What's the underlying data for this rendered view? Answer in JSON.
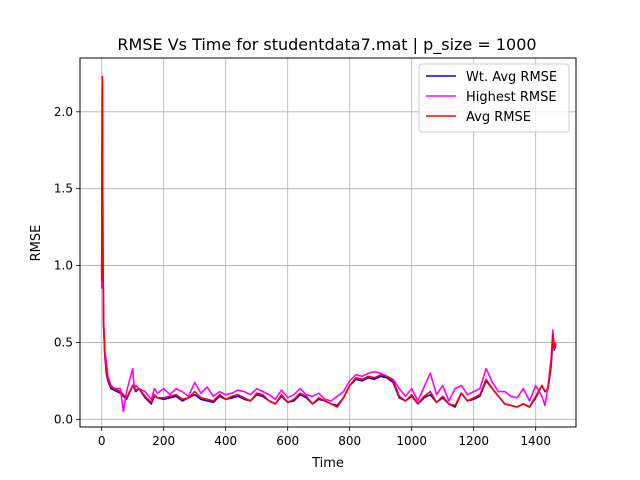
{
  "chart_data": {
    "type": "line",
    "title": "RMSE Vs Time for studentdata7.mat | p_size = 1000",
    "xlabel": "Time",
    "ylabel": "RMSE",
    "xlim": [
      -70,
      1530
    ],
    "ylim": [
      -0.05,
      2.35
    ],
    "xticks": [
      0,
      200,
      400,
      600,
      800,
      1000,
      1200,
      1400
    ],
    "yticks": [
      0.0,
      0.5,
      1.0,
      1.5,
      2.0
    ],
    "grid": true,
    "legend_position": "top-right",
    "series": [
      {
        "name": "Wt. Avg RMSE",
        "color": "#0000ff",
        "x": [
          0,
          2,
          4,
          6,
          10,
          15,
          20,
          30,
          40,
          60,
          80,
          100,
          110,
          120,
          140,
          160,
          170,
          180,
          200,
          220,
          240,
          260,
          280,
          300,
          320,
          340,
          360,
          380,
          400,
          420,
          440,
          460,
          480,
          500,
          520,
          540,
          560,
          580,
          600,
          620,
          640,
          660,
          680,
          700,
          720,
          740,
          760,
          780,
          800,
          820,
          840,
          860,
          880,
          900,
          920,
          940,
          960,
          980,
          1000,
          1020,
          1040,
          1060,
          1080,
          1100,
          1120,
          1140,
          1160,
          1180,
          1200,
          1220,
          1240,
          1260,
          1280,
          1300,
          1320,
          1340,
          1360,
          1380,
          1400,
          1420,
          1430,
          1440,
          1450,
          1455,
          1460,
          1465
        ],
        "y": [
          0.95,
          2.22,
          1.1,
          0.6,
          0.42,
          0.3,
          0.25,
          0.2,
          0.19,
          0.17,
          0.13,
          0.22,
          0.18,
          0.2,
          0.14,
          0.1,
          0.15,
          0.14,
          0.13,
          0.14,
          0.15,
          0.12,
          0.14,
          0.16,
          0.13,
          0.12,
          0.11,
          0.15,
          0.13,
          0.14,
          0.15,
          0.13,
          0.12,
          0.16,
          0.15,
          0.12,
          0.1,
          0.15,
          0.11,
          0.12,
          0.16,
          0.14,
          0.1,
          0.13,
          0.12,
          0.1,
          0.09,
          0.14,
          0.22,
          0.26,
          0.25,
          0.27,
          0.26,
          0.28,
          0.27,
          0.24,
          0.14,
          0.12,
          0.15,
          0.1,
          0.14,
          0.16,
          0.11,
          0.14,
          0.1,
          0.08,
          0.17,
          0.12,
          0.13,
          0.15,
          0.25,
          0.2,
          0.15,
          0.1,
          0.09,
          0.08,
          0.1,
          0.08,
          0.14,
          0.22,
          0.18,
          0.2,
          0.35,
          0.52,
          0.45,
          0.48
        ]
      },
      {
        "name": "Highest RMSE",
        "color": "#ff00ff",
        "x": [
          0,
          2,
          4,
          6,
          10,
          15,
          20,
          30,
          40,
          60,
          70,
          80,
          100,
          105,
          110,
          120,
          140,
          160,
          170,
          180,
          200,
          220,
          240,
          260,
          280,
          300,
          320,
          340,
          360,
          380,
          400,
          420,
          440,
          460,
          480,
          500,
          520,
          540,
          560,
          580,
          600,
          620,
          640,
          660,
          680,
          700,
          720,
          740,
          760,
          780,
          800,
          820,
          840,
          860,
          880,
          900,
          920,
          940,
          960,
          980,
          1000,
          1020,
          1040,
          1060,
          1080,
          1100,
          1120,
          1140,
          1160,
          1180,
          1200,
          1220,
          1240,
          1260,
          1280,
          1300,
          1320,
          1340,
          1360,
          1380,
          1400,
          1420,
          1430,
          1440,
          1450,
          1455,
          1460,
          1465
        ],
        "y": [
          0.85,
          2.2,
          1.15,
          0.65,
          0.44,
          0.38,
          0.28,
          0.22,
          0.2,
          0.2,
          0.05,
          0.18,
          0.33,
          0.2,
          0.22,
          0.2,
          0.18,
          0.13,
          0.2,
          0.17,
          0.2,
          0.16,
          0.2,
          0.18,
          0.15,
          0.24,
          0.17,
          0.21,
          0.15,
          0.18,
          0.16,
          0.17,
          0.19,
          0.18,
          0.16,
          0.2,
          0.18,
          0.16,
          0.13,
          0.19,
          0.14,
          0.16,
          0.2,
          0.16,
          0.15,
          0.17,
          0.13,
          0.12,
          0.15,
          0.18,
          0.25,
          0.29,
          0.28,
          0.3,
          0.31,
          0.3,
          0.28,
          0.26,
          0.2,
          0.15,
          0.2,
          0.12,
          0.21,
          0.3,
          0.16,
          0.22,
          0.12,
          0.2,
          0.22,
          0.16,
          0.18,
          0.2,
          0.33,
          0.24,
          0.18,
          0.18,
          0.15,
          0.14,
          0.2,
          0.12,
          0.22,
          0.15,
          0.09,
          0.22,
          0.4,
          0.58,
          0.47,
          0.5
        ]
      },
      {
        "name": "Avg RMSE",
        "color": "#ff0000",
        "x": [
          0,
          2,
          4,
          6,
          10,
          15,
          20,
          30,
          40,
          60,
          80,
          100,
          110,
          120,
          140,
          160,
          170,
          180,
          200,
          220,
          240,
          260,
          280,
          300,
          320,
          340,
          360,
          380,
          400,
          420,
          440,
          460,
          480,
          500,
          520,
          540,
          560,
          580,
          600,
          620,
          640,
          660,
          680,
          700,
          720,
          740,
          760,
          780,
          800,
          820,
          840,
          860,
          880,
          900,
          920,
          940,
          960,
          980,
          1000,
          1020,
          1040,
          1060,
          1080,
          1100,
          1120,
          1140,
          1160,
          1180,
          1200,
          1220,
          1240,
          1260,
          1280,
          1300,
          1320,
          1340,
          1360,
          1380,
          1400,
          1420,
          1430,
          1440,
          1450,
          1455,
          1460,
          1465
        ],
        "y": [
          0.9,
          2.23,
          1.12,
          0.62,
          0.42,
          0.32,
          0.26,
          0.21,
          0.2,
          0.18,
          0.14,
          0.22,
          0.19,
          0.2,
          0.15,
          0.11,
          0.16,
          0.14,
          0.14,
          0.15,
          0.16,
          0.13,
          0.14,
          0.18,
          0.14,
          0.13,
          0.12,
          0.16,
          0.13,
          0.15,
          0.16,
          0.14,
          0.12,
          0.17,
          0.16,
          0.12,
          0.1,
          0.16,
          0.11,
          0.13,
          0.17,
          0.15,
          0.1,
          0.14,
          0.12,
          0.1,
          0.08,
          0.14,
          0.22,
          0.27,
          0.26,
          0.28,
          0.27,
          0.29,
          0.28,
          0.25,
          0.15,
          0.12,
          0.16,
          0.1,
          0.15,
          0.18,
          0.11,
          0.15,
          0.1,
          0.09,
          0.17,
          0.12,
          0.14,
          0.16,
          0.26,
          0.2,
          0.15,
          0.1,
          0.09,
          0.08,
          0.1,
          0.08,
          0.15,
          0.22,
          0.18,
          0.2,
          0.36,
          0.55,
          0.46,
          0.49
        ]
      }
    ]
  }
}
